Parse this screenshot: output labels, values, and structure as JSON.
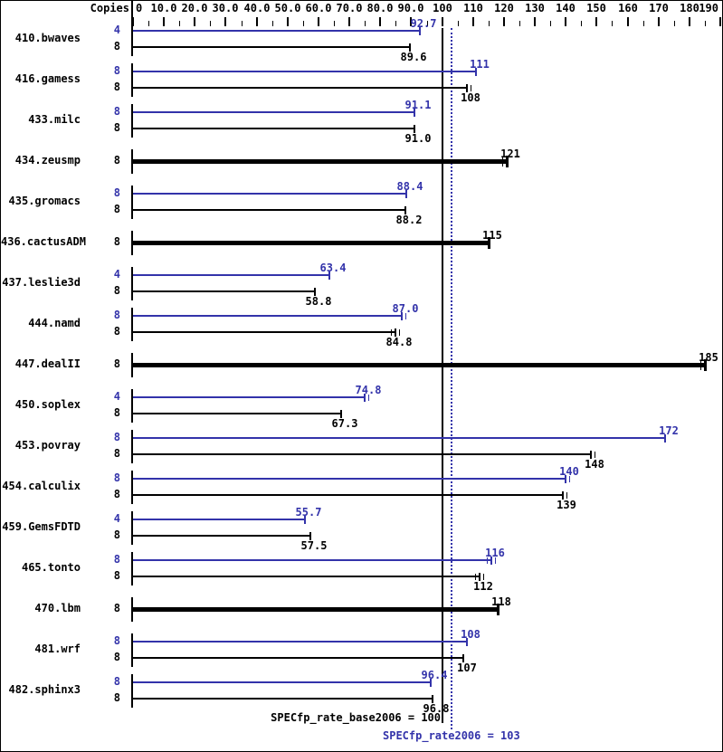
{
  "chart_data": {
    "type": "bar",
    "orientation": "horizontal",
    "axis_header": "Copies",
    "x_axis": {
      "min": 0,
      "max": 190,
      "minor_tick_step": 5,
      "major_ticks": [
        {
          "value": 0,
          "label": "0"
        },
        {
          "value": 10,
          "label": "10.0"
        },
        {
          "value": 20,
          "label": "20.0"
        },
        {
          "value": 30,
          "label": "30.0"
        },
        {
          "value": 40,
          "label": "40.0"
        },
        {
          "value": 50,
          "label": "50.0"
        },
        {
          "value": 60,
          "label": "60.0"
        },
        {
          "value": 70,
          "label": "70.0"
        },
        {
          "value": 80,
          "label": "80.0"
        },
        {
          "value": 90,
          "label": "90.0"
        },
        {
          "value": 100,
          "label": "100"
        },
        {
          "value": 110,
          "label": "110"
        },
        {
          "value": 120,
          "label": "120"
        },
        {
          "value": 130,
          "label": "130"
        },
        {
          "value": 140,
          "label": "140"
        },
        {
          "value": 150,
          "label": "150"
        },
        {
          "value": 160,
          "label": "160"
        },
        {
          "value": 170,
          "label": "170"
        },
        {
          "value": 180,
          "label": "180"
        },
        {
          "value": 190,
          "label": "190"
        }
      ]
    },
    "series_colors": {
      "peak": "#3333aa",
      "base": "#000000"
    },
    "reference_lines": [
      {
        "value": 100,
        "label": "SPECfp_rate_base2006 = 100",
        "series": "base",
        "style": "solid"
      },
      {
        "value": 103,
        "label": "SPECfp_rate2006 = 103",
        "series": "peak",
        "style": "dotted"
      }
    ],
    "benchmarks": [
      {
        "name": "410.bwaves",
        "single": false,
        "rows": [
          {
            "copies": "4",
            "series": "peak",
            "value": 92.7,
            "label": "92.7",
            "run_marks": 0
          },
          {
            "copies": "8",
            "series": "base",
            "value": 89.6,
            "label": "89.6",
            "run_marks": 0
          }
        ]
      },
      {
        "name": "416.gamess",
        "single": false,
        "rows": [
          {
            "copies": "8",
            "series": "peak",
            "value": 111,
            "label": "111",
            "run_marks": 0
          },
          {
            "copies": "8",
            "series": "base",
            "value": 108,
            "label": "108",
            "run_marks": 1
          }
        ]
      },
      {
        "name": "433.milc",
        "single": false,
        "rows": [
          {
            "copies": "8",
            "series": "peak",
            "value": 91.1,
            "label": "91.1",
            "run_marks": 0
          },
          {
            "copies": "8",
            "series": "base",
            "value": 91.0,
            "label": "91.0",
            "run_marks": 0
          }
        ]
      },
      {
        "name": "434.zeusmp",
        "single": true,
        "rows": [
          {
            "copies": "8",
            "series": "base",
            "value": 121,
            "label": "121",
            "run_marks": 1
          }
        ]
      },
      {
        "name": "435.gromacs",
        "single": false,
        "rows": [
          {
            "copies": "8",
            "series": "peak",
            "value": 88.4,
            "label": "88.4",
            "run_marks": 0
          },
          {
            "copies": "8",
            "series": "base",
            "value": 88.2,
            "label": "88.2",
            "run_marks": 0
          }
        ]
      },
      {
        "name": "436.cactusADM",
        "single": true,
        "rows": [
          {
            "copies": "8",
            "series": "base",
            "value": 115,
            "label": "115",
            "run_marks": 0
          }
        ]
      },
      {
        "name": "437.leslie3d",
        "single": false,
        "rows": [
          {
            "copies": "4",
            "series": "peak",
            "value": 63.4,
            "label": "63.4",
            "run_marks": 0
          },
          {
            "copies": "8",
            "series": "base",
            "value": 58.8,
            "label": "58.8",
            "run_marks": 0
          }
        ]
      },
      {
        "name": "444.namd",
        "single": false,
        "rows": [
          {
            "copies": "8",
            "series": "peak",
            "value": 87.0,
            "label": "87.0",
            "run_marks": 1
          },
          {
            "copies": "8",
            "series": "base",
            "value": 84.8,
            "label": "84.8",
            "run_marks": 2
          }
        ]
      },
      {
        "name": "447.dealII",
        "single": true,
        "rows": [
          {
            "copies": "8",
            "series": "base",
            "value": 185,
            "label": "185",
            "run_marks": 1
          }
        ]
      },
      {
        "name": "450.soplex",
        "single": false,
        "rows": [
          {
            "copies": "4",
            "series": "peak",
            "value": 74.8,
            "label": "74.8",
            "run_marks": 1
          },
          {
            "copies": "8",
            "series": "base",
            "value": 67.3,
            "label": "67.3",
            "run_marks": 0
          }
        ]
      },
      {
        "name": "453.povray",
        "single": false,
        "rows": [
          {
            "copies": "8",
            "series": "peak",
            "value": 172,
            "label": "172",
            "run_marks": 0
          },
          {
            "copies": "8",
            "series": "base",
            "value": 148,
            "label": "148",
            "run_marks": 1
          }
        ]
      },
      {
        "name": "454.calculix",
        "single": false,
        "rows": [
          {
            "copies": "8",
            "series": "peak",
            "value": 140,
            "label": "140",
            "run_marks": 1
          },
          {
            "copies": "8",
            "series": "base",
            "value": 139,
            "label": "139",
            "run_marks": 1
          }
        ]
      },
      {
        "name": "459.GemsFDTD",
        "single": false,
        "rows": [
          {
            "copies": "4",
            "series": "peak",
            "value": 55.7,
            "label": "55.7",
            "run_marks": 0
          },
          {
            "copies": "8",
            "series": "base",
            "value": 57.5,
            "label": "57.5",
            "run_marks": 0
          }
        ]
      },
      {
        "name": "465.tonto",
        "single": false,
        "rows": [
          {
            "copies": "8",
            "series": "peak",
            "value": 116,
            "label": "116",
            "run_marks": 2
          },
          {
            "copies": "8",
            "series": "base",
            "value": 112,
            "label": "112",
            "run_marks": 2
          }
        ]
      },
      {
        "name": "470.lbm",
        "single": true,
        "rows": [
          {
            "copies": "8",
            "series": "base",
            "value": 118,
            "label": "118",
            "run_marks": 0
          }
        ]
      },
      {
        "name": "481.wrf",
        "single": false,
        "rows": [
          {
            "copies": "8",
            "series": "peak",
            "value": 108,
            "label": "108",
            "run_marks": 0
          },
          {
            "copies": "8",
            "series": "base",
            "value": 107,
            "label": "107",
            "run_marks": 0
          }
        ]
      },
      {
        "name": "482.sphinx3",
        "single": false,
        "rows": [
          {
            "copies": "8",
            "series": "peak",
            "value": 96.4,
            "label": "96.4",
            "run_marks": 0
          },
          {
            "copies": "8",
            "series": "base",
            "value": 96.8,
            "label": "96.8",
            "run_marks": 0
          }
        ]
      }
    ]
  }
}
